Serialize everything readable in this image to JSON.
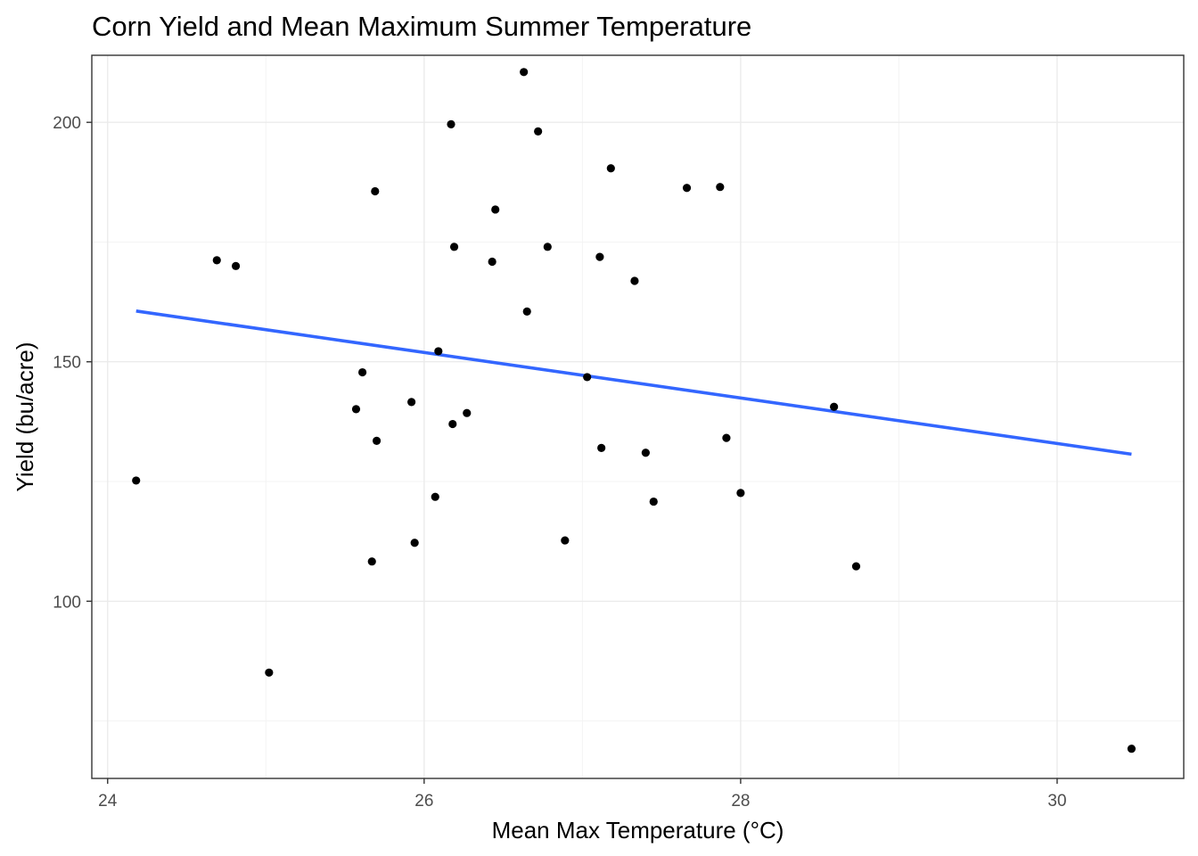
{
  "chart_data": {
    "type": "scatter",
    "title": "Corn Yield and Mean Maximum Summer Temperature",
    "xlabel": "Mean Max Temperature (°C)",
    "ylabel": "Yield (bu/acre)",
    "xlim": [
      23.9,
      30.8
    ],
    "ylim": [
      63,
      214
    ],
    "x_ticks": [
      24,
      26,
      28,
      30
    ],
    "x_tick_labels": [
      "24",
      "26",
      "28",
      "30"
    ],
    "y_ticks": [
      100,
      150,
      200
    ],
    "y_tick_labels": [
      "100",
      "150",
      "200"
    ],
    "x_minor": [
      25,
      27,
      29
    ],
    "y_minor": [
      75,
      125,
      175
    ],
    "grid": true,
    "colors": {
      "points": "#000000",
      "trend_line": "#3366ff",
      "grid": "#ebebeb",
      "border": "#333333"
    },
    "points": [
      {
        "x": 24.18,
        "y": 125.2
      },
      {
        "x": 24.69,
        "y": 171.2
      },
      {
        "x": 24.81,
        "y": 170.0
      },
      {
        "x": 25.02,
        "y": 85.1
      },
      {
        "x": 25.57,
        "y": 140.1
      },
      {
        "x": 25.61,
        "y": 147.8
      },
      {
        "x": 25.67,
        "y": 108.3
      },
      {
        "x": 25.69,
        "y": 185.6
      },
      {
        "x": 25.7,
        "y": 133.5
      },
      {
        "x": 25.92,
        "y": 141.6
      },
      {
        "x": 25.94,
        "y": 112.2
      },
      {
        "x": 26.07,
        "y": 121.8
      },
      {
        "x": 26.09,
        "y": 152.2
      },
      {
        "x": 26.17,
        "y": 199.6
      },
      {
        "x": 26.18,
        "y": 137.0
      },
      {
        "x": 26.19,
        "y": 174.0
      },
      {
        "x": 26.27,
        "y": 139.3
      },
      {
        "x": 26.43,
        "y": 170.9
      },
      {
        "x": 26.45,
        "y": 181.8
      },
      {
        "x": 26.63,
        "y": 210.5
      },
      {
        "x": 26.65,
        "y": 160.5
      },
      {
        "x": 26.72,
        "y": 198.1
      },
      {
        "x": 26.78,
        "y": 174.0
      },
      {
        "x": 26.89,
        "y": 112.7
      },
      {
        "x": 27.03,
        "y": 146.8
      },
      {
        "x": 27.11,
        "y": 171.9
      },
      {
        "x": 27.12,
        "y": 132.0
      },
      {
        "x": 27.18,
        "y": 190.4
      },
      {
        "x": 27.33,
        "y": 166.9
      },
      {
        "x": 27.4,
        "y": 131.0
      },
      {
        "x": 27.45,
        "y": 120.8
      },
      {
        "x": 27.66,
        "y": 186.3
      },
      {
        "x": 27.87,
        "y": 186.5
      },
      {
        "x": 27.91,
        "y": 134.1
      },
      {
        "x": 28.0,
        "y": 122.6
      },
      {
        "x": 28.59,
        "y": 140.6
      },
      {
        "x": 28.73,
        "y": 107.3
      },
      {
        "x": 30.47,
        "y": 69.2
      }
    ],
    "trend_line": {
      "method": "linear",
      "x": [
        24.18,
        30.47
      ],
      "y": [
        160.6,
        130.7
      ]
    }
  }
}
